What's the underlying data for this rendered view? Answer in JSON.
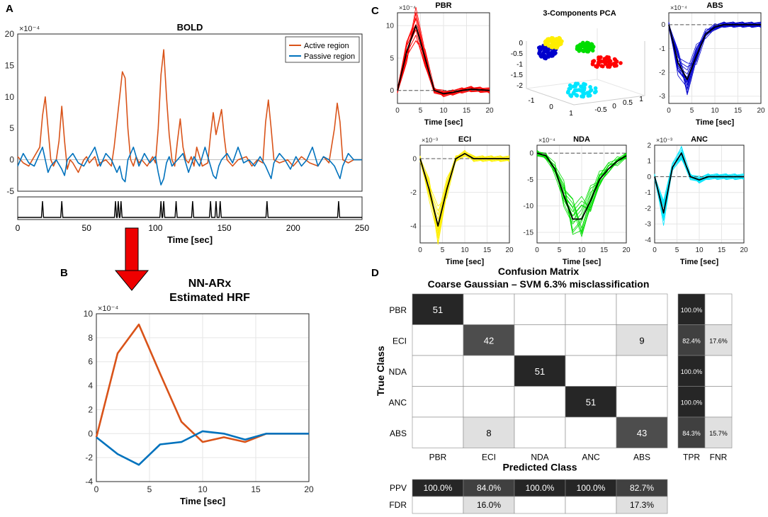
{
  "panel_letters": {
    "a": "A",
    "b": "B",
    "c": "C",
    "d": "D"
  },
  "chart_data": [
    {
      "id": "bold",
      "type": "line",
      "title": "BOLD",
      "xlabel": "Time [sec]",
      "ylabel": "",
      "exponent": "×10⁻⁴",
      "xlim": [
        0,
        250
      ],
      "ylim": [
        -5,
        20
      ],
      "xticks": [
        0,
        50,
        100,
        150,
        200,
        250
      ],
      "yticks": [
        -5,
        0,
        5,
        10,
        15,
        20
      ],
      "legend": "top-right",
      "series": [
        {
          "name": "Active region",
          "color": "#d95319",
          "x": [
            0,
            4,
            8,
            12,
            16,
            18,
            20,
            22,
            24,
            26,
            28,
            30,
            32,
            34,
            36,
            38,
            40,
            44,
            48,
            50,
            52,
            54,
            56,
            58,
            60,
            64,
            68,
            70,
            72,
            74,
            76,
            78,
            80,
            82,
            84,
            86,
            88,
            90,
            94,
            98,
            100,
            102,
            104,
            106,
            108,
            110,
            112,
            114,
            116,
            118,
            120,
            122,
            124,
            126,
            128,
            130,
            134,
            138,
            140,
            142,
            144,
            146,
            148,
            150,
            152,
            156,
            160,
            166,
            170,
            174,
            178,
            180,
            182,
            184,
            186,
            190,
            196,
            200,
            206,
            212,
            218,
            222,
            226,
            230,
            232,
            234,
            236,
            240,
            244,
            250
          ],
          "y": [
            0.5,
            -0.5,
            -1,
            0.5,
            2,
            7,
            10,
            5,
            0,
            -1,
            0,
            3,
            8.5,
            3,
            -1.5,
            0,
            -0.5,
            -2,
            0,
            0.5,
            -0.5,
            0,
            0.5,
            -1,
            -0.5,
            0,
            -1,
            2,
            6,
            10,
            14,
            13,
            5,
            0,
            -1,
            0.5,
            -0.5,
            0,
            -1,
            0.5,
            -0.5,
            5,
            13.5,
            17.5,
            10,
            4,
            0,
            -1,
            3,
            6.5,
            2,
            0,
            -0.5,
            0.5,
            -1,
            2,
            -1,
            -0.5,
            4,
            7.5,
            4,
            6,
            8,
            3.5,
            0,
            -1,
            0,
            0.5,
            -1,
            0,
            -0.5,
            6,
            9.5,
            5,
            0,
            -0.5,
            0,
            -1,
            0.5,
            -0.5,
            -1,
            0.5,
            -0.5,
            5,
            9,
            6,
            0,
            -0.5,
            0,
            0
          ]
        },
        {
          "name": "Passive region",
          "color": "#0072bd",
          "x": [
            0,
            4,
            8,
            12,
            16,
            18,
            20,
            22,
            24,
            28,
            32,
            34,
            36,
            40,
            44,
            48,
            52,
            56,
            60,
            64,
            68,
            70,
            72,
            74,
            76,
            78,
            80,
            84,
            88,
            92,
            96,
            100,
            102,
            104,
            106,
            108,
            110,
            112,
            116,
            120,
            124,
            128,
            132,
            136,
            140,
            142,
            144,
            146,
            148,
            152,
            156,
            160,
            164,
            168,
            172,
            176,
            180,
            182,
            184,
            186,
            190,
            194,
            198,
            202,
            206,
            210,
            214,
            218,
            222,
            226,
            230,
            232,
            234,
            236,
            240,
            244,
            250
          ],
          "y": [
            -1,
            1,
            -0.5,
            -1,
            1,
            2,
            0,
            -2,
            -1,
            0,
            -1.5,
            -2.5,
            0,
            1,
            -0.5,
            -1,
            0.5,
            2,
            -1,
            1,
            0,
            -1,
            -2,
            -1,
            -3,
            -3.5,
            0,
            2,
            -1,
            1,
            -0.5,
            0.5,
            -2,
            -4,
            -3,
            -0.5,
            0.5,
            -1,
            0,
            1,
            -2,
            0.5,
            -1,
            2,
            -1,
            -2.5,
            -3,
            -1,
            0,
            1,
            -0.5,
            2,
            -0.5,
            0,
            -1,
            0.5,
            -1,
            -2,
            -3,
            -0.5,
            1,
            0,
            -1.5,
            0.5,
            -1,
            0,
            2,
            -1,
            0.5,
            0,
            -1,
            -2,
            -3,
            -1,
            1,
            0,
            0
          ]
        }
      ]
    },
    {
      "id": "stim",
      "type": "line",
      "title": "",
      "xlim": [
        0,
        250
      ],
      "spike_times": [
        18,
        32,
        71,
        73,
        75,
        104,
        106,
        115,
        127,
        140,
        144,
        147,
        181,
        233
      ]
    },
    {
      "id": "hrf",
      "type": "line",
      "title": "NN-ARx",
      "subtitle": "Estimated HRF",
      "xlabel": "Time [sec]",
      "exponent": "×10⁻⁴",
      "xlim": [
        0,
        20
      ],
      "ylim": [
        -4,
        10
      ],
      "xticks": [
        0,
        5,
        10,
        15,
        20
      ],
      "yticks": [
        -4,
        -2,
        0,
        2,
        4,
        6,
        8,
        10
      ],
      "series": [
        {
          "name": "Active region",
          "color": "#d95319",
          "x": [
            0,
            2,
            4,
            6,
            8,
            10,
            12,
            14,
            16,
            18,
            20
          ],
          "y": [
            -0.3,
            6.7,
            9.1,
            5.0,
            1.0,
            -0.7,
            -0.3,
            -0.7,
            0,
            0,
            0
          ]
        },
        {
          "name": "Passive region",
          "color": "#0072bd",
          "x": [
            0,
            2,
            4,
            6,
            8,
            10,
            12,
            14,
            16,
            18,
            20
          ],
          "y": [
            -0.3,
            -1.7,
            -2.6,
            -0.9,
            -0.7,
            0.2,
            0,
            -0.5,
            0,
            0,
            0
          ]
        }
      ]
    },
    {
      "id": "pbr",
      "type": "line",
      "title": "PBR",
      "xlabel": "Time [sec]",
      "exponent": "×10⁻⁴",
      "color": "#ff0000",
      "xlim": [
        0,
        20
      ],
      "ylim": [
        -2,
        12
      ],
      "xticks": [
        0,
        5,
        10,
        15,
        20
      ],
      "yticks": [
        0,
        5,
        10
      ],
      "mean_x": [
        0,
        2,
        4,
        6,
        8,
        10,
        12,
        14,
        16,
        18,
        20
      ],
      "mean_y": [
        0,
        6,
        10,
        5,
        0,
        -0.5,
        -0.3,
        0,
        0.2,
        0.1,
        0
      ]
    },
    {
      "id": "abs",
      "type": "line",
      "title": "ABS",
      "xlabel": "Time [sec]",
      "exponent": "×10⁻⁴",
      "color": "#0000cc",
      "xlim": [
        0,
        20
      ],
      "ylim": [
        -3.3,
        0.5
      ],
      "xticks": [
        0,
        5,
        10,
        15,
        20
      ],
      "yticks": [
        -3,
        -2,
        -1,
        0
      ],
      "mean_x": [
        0,
        2,
        4,
        6,
        8,
        10,
        12,
        14,
        16,
        18,
        20
      ],
      "mean_y": [
        0,
        -1.6,
        -2.3,
        -1.3,
        -0.4,
        -0.1,
        0,
        0,
        0,
        0,
        0
      ]
    },
    {
      "id": "eci",
      "type": "line",
      "title": "ECI",
      "xlabel": "Time [sec]",
      "exponent": "×10⁻³",
      "color": "#ffee00",
      "xlim": [
        0,
        20
      ],
      "ylim": [
        -5,
        0.8
      ],
      "xticks": [
        0,
        5,
        10,
        15,
        20
      ],
      "yticks": [
        -4,
        -2,
        0
      ],
      "mean_x": [
        0,
        2,
        4,
        6,
        8,
        10,
        12,
        14,
        16,
        18,
        20
      ],
      "mean_y": [
        0,
        -1.8,
        -4,
        -1.8,
        0,
        0.3,
        0,
        0,
        0,
        0,
        0
      ]
    },
    {
      "id": "nda",
      "type": "line",
      "title": "NDA",
      "xlabel": "Time [sec]",
      "exponent": "×10⁻⁴",
      "color": "#00dd00",
      "xlim": [
        0,
        20
      ],
      "ylim": [
        -17,
        1.5
      ],
      "xticks": [
        0,
        5,
        10,
        15,
        20
      ],
      "yticks": [
        -15,
        -10,
        -5,
        0
      ],
      "mean_x": [
        0,
        2,
        4,
        6,
        8,
        10,
        12,
        14,
        16,
        18,
        20
      ],
      "mean_y": [
        0,
        -0.5,
        -3,
        -8,
        -12.5,
        -12.5,
        -9,
        -5,
        -3,
        -1.5,
        -0.5
      ]
    },
    {
      "id": "anc",
      "type": "line",
      "title": "ANC",
      "xlabel": "Time [sec]",
      "exponent": "×10⁻³",
      "color": "#00e5ff",
      "xlim": [
        0,
        20
      ],
      "ylim": [
        -4.2,
        2
      ],
      "xticks": [
        0,
        5,
        10,
        15,
        20
      ],
      "yticks": [
        -4,
        -3,
        -2,
        -1,
        0,
        1,
        2
      ],
      "mean_x": [
        0,
        2,
        4,
        6,
        8,
        10,
        12,
        14,
        16,
        18,
        20
      ],
      "mean_y": [
        0,
        -2.3,
        0.6,
        1.5,
        0,
        -0.2,
        0,
        0,
        0,
        0,
        0
      ]
    },
    {
      "id": "pca",
      "type": "scatter",
      "title": "3-Components PCA",
      "ytick_labels": [
        "0",
        "-0.5",
        "-1",
        "-1.5",
        "-2"
      ],
      "x1_tick_labels": [
        "-1",
        "0",
        "1"
      ],
      "x2_tick_labels": [
        "-0.5",
        "0",
        "0.5",
        "1"
      ],
      "clusters": [
        {
          "name": "PBR",
          "color": "#ff0000"
        },
        {
          "name": "ABS",
          "color": "#0000cc"
        },
        {
          "name": "ECI",
          "color": "#ffee00"
        },
        {
          "name": "NDA",
          "color": "#00dd00"
        },
        {
          "name": "ANC",
          "color": "#00e5ff"
        }
      ]
    },
    {
      "id": "confusion",
      "type": "heatmap",
      "title": "Confusion Matrix",
      "subtitle": "Coarse Gaussian – SVM 6.3% misclassification",
      "xlabel": "Predicted Class",
      "ylabel": "True Class",
      "classes": [
        "PBR",
        "ECI",
        "NDA",
        "ANC",
        "ABS"
      ],
      "matrix": [
        [
          51,
          0,
          0,
          0,
          0
        ],
        [
          0,
          42,
          0,
          0,
          9
        ],
        [
          0,
          0,
          51,
          0,
          0
        ],
        [
          0,
          0,
          0,
          51,
          0
        ],
        [
          0,
          8,
          0,
          0,
          43
        ]
      ],
      "tpr": [
        "100.0%",
        "82.4%",
        "100.0%",
        "100.0%",
        "84.3%"
      ],
      "fnr": [
        "",
        "17.6%",
        "",
        "",
        "15.7%"
      ],
      "tpr_label": "TPR",
      "fnr_label": "FNR",
      "ppv": [
        "100.0%",
        "84.0%",
        "100.0%",
        "100.0%",
        "82.7%"
      ],
      "fdr": [
        "",
        "16.0%",
        "",
        "",
        "17.3%"
      ],
      "ppv_label": "PPV",
      "fdr_label": "FDR"
    }
  ]
}
